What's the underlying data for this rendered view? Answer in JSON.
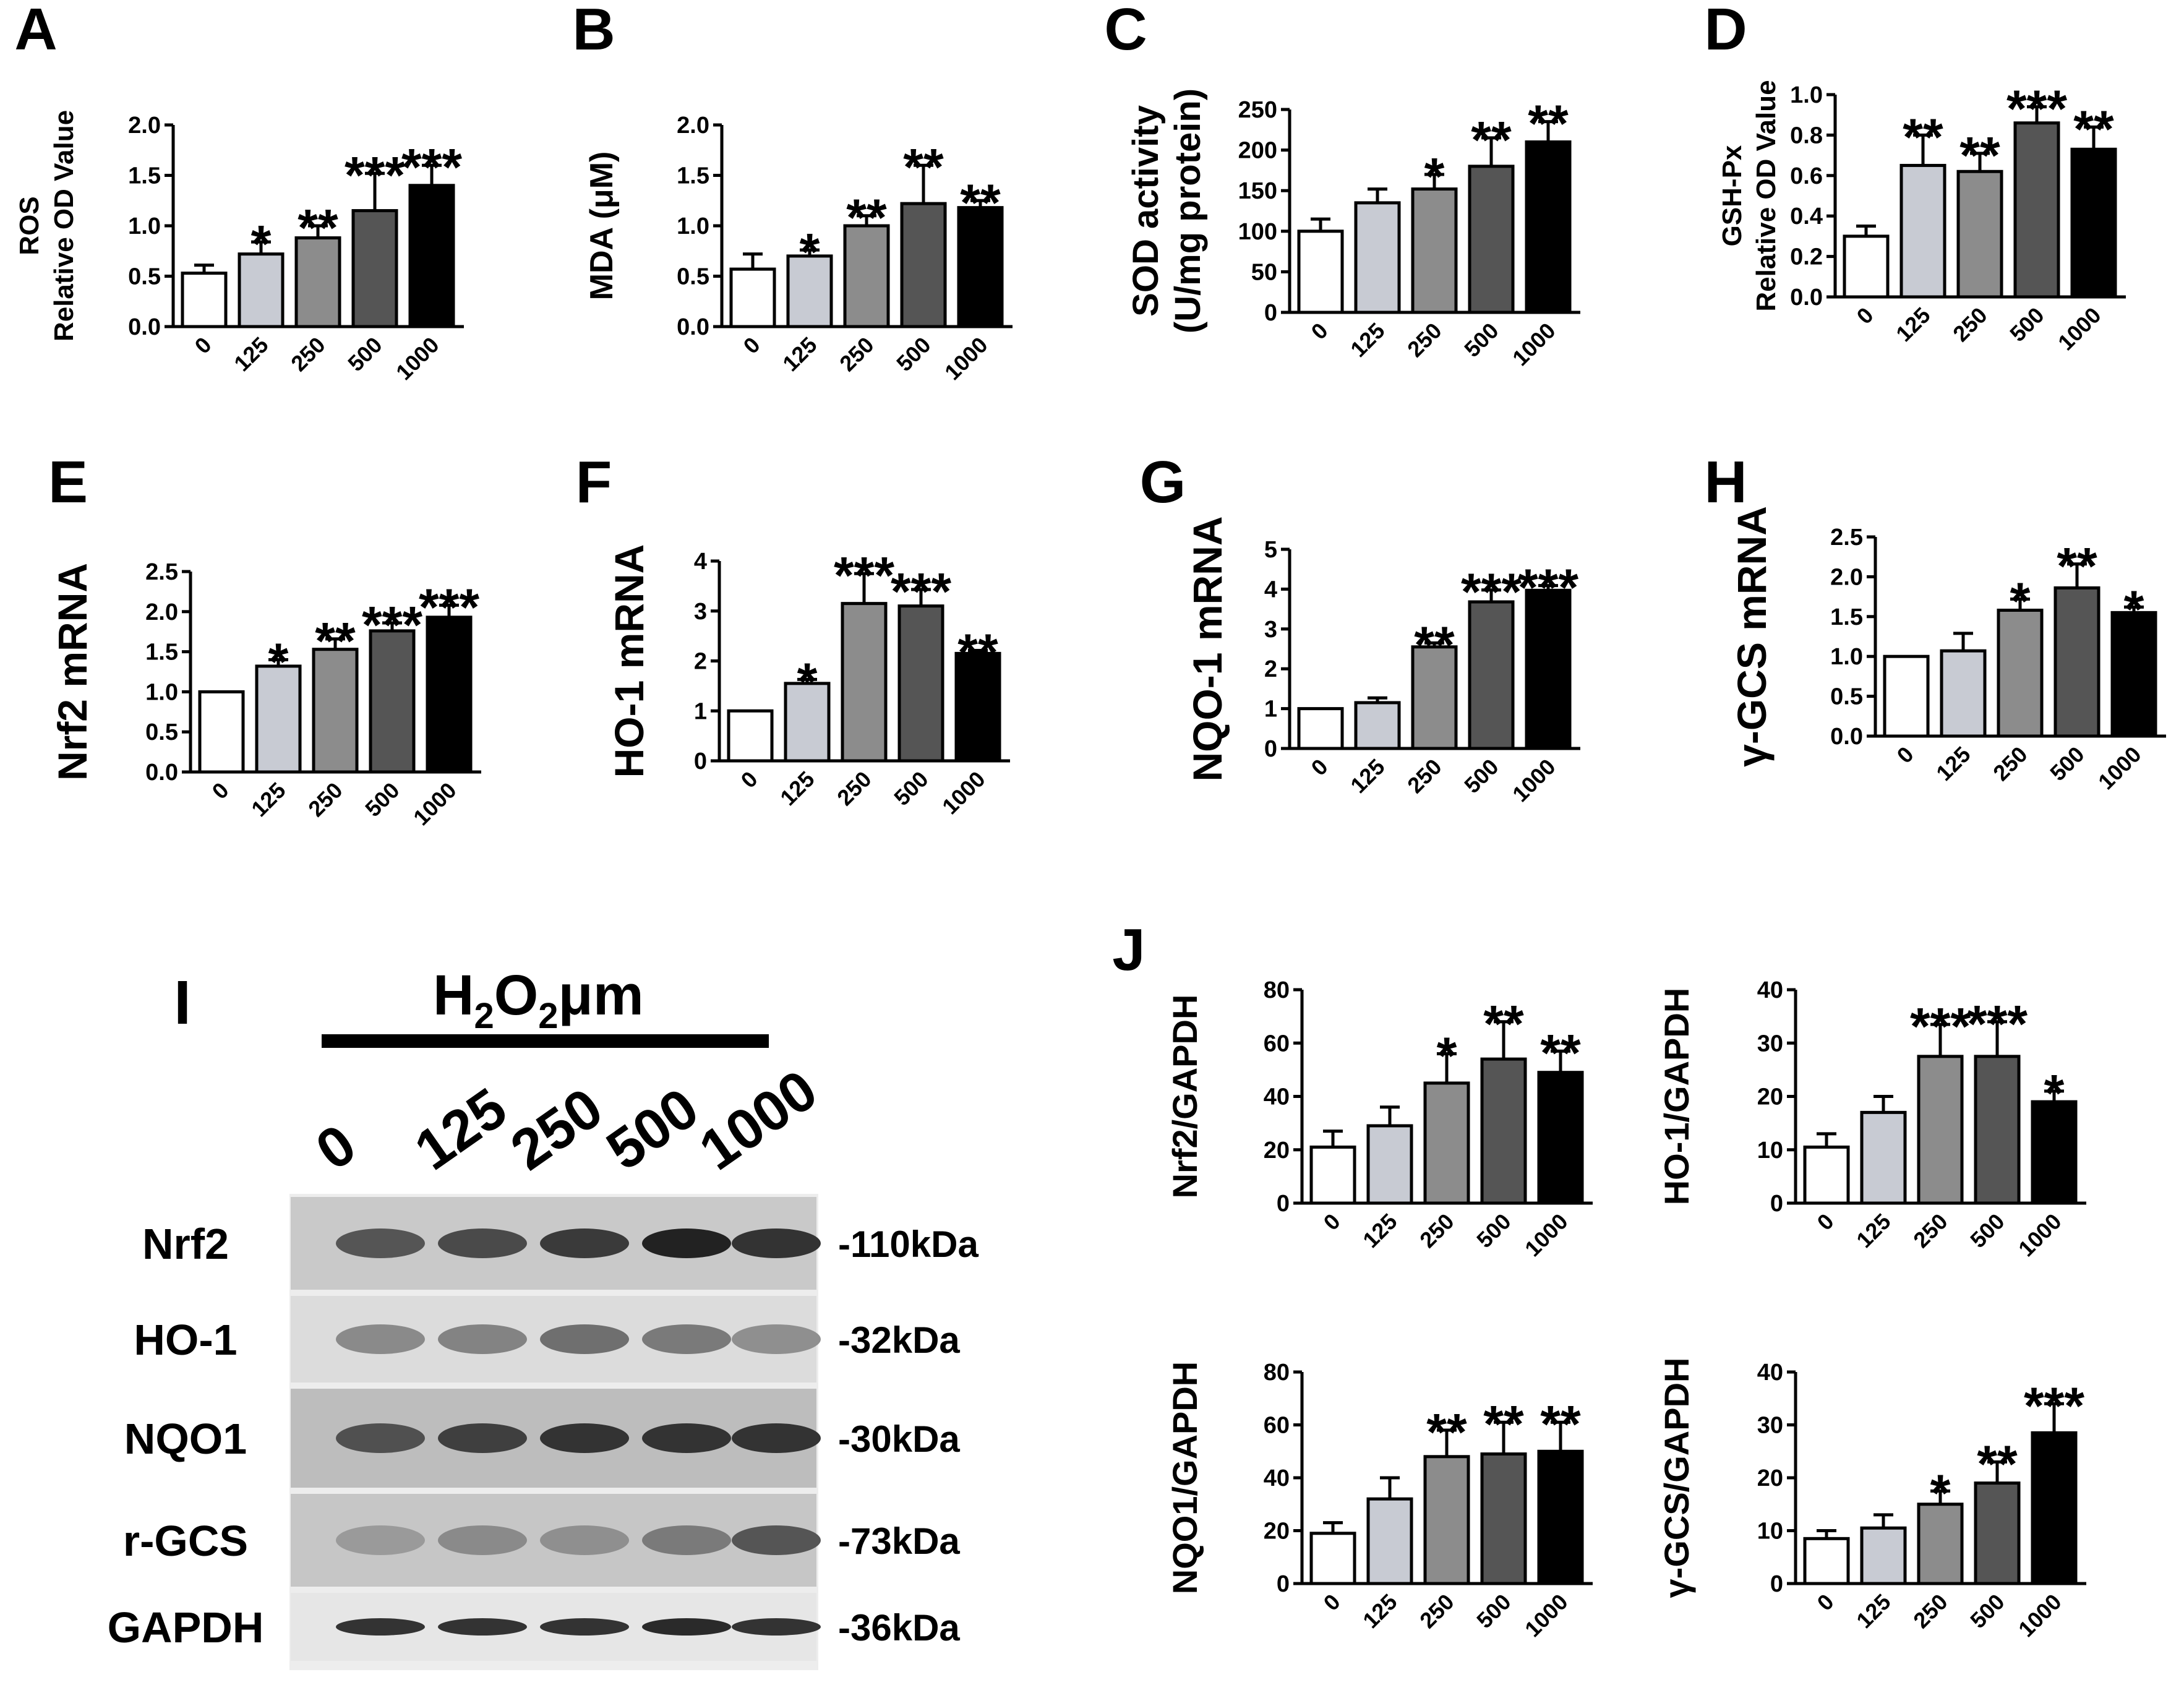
{
  "figure": {
    "western_blot": {
      "panel_letter": "I",
      "treatment_label_main": "H",
      "treatment_sub_1": "2",
      "treatment_mid": "O",
      "treatment_sub_2": "2",
      "treatment_unit": "μm",
      "lanes": [
        "0",
        "125",
        "250",
        "500",
        "1000"
      ],
      "bands": [
        {
          "protein": "Nrf2",
          "size": "-110kDa"
        },
        {
          "protein": "HO-1",
          "size": "-32kDa"
        },
        {
          "protein": "NQO1",
          "size": "-30kDa"
        },
        {
          "protein": "r-GCS",
          "size": "-73kDa"
        },
        {
          "protein": "GAPDH",
          "size": "-36kDa"
        }
      ]
    }
  },
  "colors": {
    "bar_fills": [
      "#ffffff",
      "#c8cbd3",
      "#8c8c8c",
      "#555555",
      "#000000"
    ],
    "stroke": "#000000"
  },
  "chart_data": [
    {
      "id": "A",
      "type": "bar",
      "panel_letter": "A",
      "ylabel": "ROS",
      "ylabel2": "Relative OD Value",
      "categories": [
        "0",
        "125",
        "250",
        "500",
        "1000"
      ],
      "values": [
        0.53,
        0.72,
        0.88,
        1.15,
        1.4
      ],
      "errors": [
        0.08,
        0.12,
        0.12,
        0.37,
        0.2
      ],
      "significance": [
        "",
        "*",
        "**",
        "***",
        "***"
      ],
      "ylim": [
        0,
        2.0
      ],
      "yticks": [
        "0.0",
        "0.5",
        "1.0",
        "1.5",
        "2.0"
      ]
    },
    {
      "id": "B",
      "type": "bar",
      "panel_letter": "B",
      "ylabel": "MDA (μM)",
      "ylabel2": "",
      "categories": [
        "0",
        "125",
        "250",
        "500",
        "1000"
      ],
      "values": [
        0.57,
        0.7,
        1.0,
        1.22,
        1.18
      ],
      "errors": [
        0.15,
        0.06,
        0.1,
        0.38,
        0.07
      ],
      "significance": [
        "",
        "*",
        "**",
        "**",
        "**"
      ],
      "ylim": [
        0,
        2.0
      ],
      "yticks": [
        "0.0",
        "0.5",
        "1.0",
        "1.5",
        "2.0"
      ]
    },
    {
      "id": "C",
      "type": "bar",
      "panel_letter": "C",
      "ylabel": "SOD activity",
      "ylabel2": "(U/mg protein)",
      "categories": [
        "0",
        "125",
        "250",
        "500",
        "1000"
      ],
      "values": [
        100,
        135,
        152,
        180,
        210
      ],
      "errors": [
        15,
        17,
        18,
        35,
        25
      ],
      "significance": [
        "",
        "",
        "*",
        "**",
        "**"
      ],
      "ylim": [
        0,
        250
      ],
      "yticks": [
        "0",
        "50",
        "100",
        "150",
        "200",
        "250"
      ]
    },
    {
      "id": "D",
      "type": "bar",
      "panel_letter": "D",
      "ylabel": "GSH-Px",
      "ylabel2": "Relative OD Value",
      "categories": [
        "0",
        "125",
        "250",
        "500",
        "1000"
      ],
      "values": [
        0.3,
        0.65,
        0.62,
        0.86,
        0.73
      ],
      "errors": [
        0.05,
        0.15,
        0.09,
        0.08,
        0.11
      ],
      "significance": [
        "",
        "**",
        "**",
        "***",
        "**"
      ],
      "ylim": [
        0,
        1.0
      ],
      "yticks": [
        "0.0",
        "0.2",
        "0.4",
        "0.6",
        "0.8",
        "1.0"
      ]
    },
    {
      "id": "E",
      "type": "bar",
      "panel_letter": "E",
      "ylabel": "Nrf2 mRNA",
      "ylabel2": "",
      "categories": [
        "0",
        "125",
        "250",
        "500",
        "1000"
      ],
      "values": [
        1.0,
        1.32,
        1.53,
        1.76,
        1.93
      ],
      "errors": [
        0,
        0.08,
        0.13,
        0.1,
        0.15
      ],
      "significance": [
        "",
        "*",
        "**",
        "***",
        "***"
      ],
      "ylim": [
        0,
        2.5
      ],
      "yticks": [
        "0.0",
        "0.5",
        "1.0",
        "1.5",
        "2.0",
        "2.5"
      ]
    },
    {
      "id": "F",
      "type": "bar",
      "panel_letter": "F",
      "ylabel": "HO-1 mRNA",
      "ylabel2": "",
      "categories": [
        "0",
        "125",
        "250",
        "500",
        "1000"
      ],
      "values": [
        1.0,
        1.55,
        3.15,
        3.1,
        2.15
      ],
      "errors": [
        0,
        0.08,
        0.6,
        0.33,
        0.06
      ],
      "significance": [
        "",
        "*",
        "***",
        "***",
        "**"
      ],
      "ylim": [
        0,
        4
      ],
      "yticks": [
        "0",
        "1",
        "2",
        "3",
        "4"
      ]
    },
    {
      "id": "G",
      "type": "bar",
      "panel_letter": "G",
      "ylabel": "NQO-1 mRNA",
      "ylabel2": "",
      "categories": [
        "0",
        "125",
        "250",
        "500",
        "1000"
      ],
      "values": [
        1.0,
        1.15,
        2.55,
        3.68,
        3.97
      ],
      "errors": [
        0,
        0.12,
        0.1,
        0.3,
        0.12
      ],
      "significance": [
        "",
        "",
        "**",
        "***",
        "***"
      ],
      "ylim": [
        0,
        5
      ],
      "yticks": [
        "0",
        "1",
        "2",
        "3",
        "4",
        "5"
      ]
    },
    {
      "id": "H",
      "type": "bar",
      "panel_letter": "H",
      "ylabel": "γ-GCS mRNA",
      "ylabel2": "",
      "categories": [
        "0",
        "125",
        "250",
        "500",
        "1000"
      ],
      "values": [
        1.0,
        1.07,
        1.58,
        1.86,
        1.55
      ],
      "errors": [
        0,
        0.22,
        0.14,
        0.3,
        0.07
      ],
      "significance": [
        "",
        "",
        "*",
        "**",
        "*"
      ],
      "ylim": [
        0,
        2.5
      ],
      "yticks": [
        "0.0",
        "0.5",
        "1.0",
        "1.5",
        "2.0",
        "2.5"
      ]
    },
    {
      "id": "J1",
      "type": "bar",
      "panel_letter": "J",
      "ylabel": "Nrf2/GAPDH",
      "ylabel2": "",
      "categories": [
        "0",
        "125",
        "250",
        "500",
        "1000"
      ],
      "values": [
        21,
        29,
        45,
        54,
        49
      ],
      "errors": [
        6,
        7,
        11,
        14,
        8
      ],
      "significance": [
        "",
        "",
        "*",
        "**",
        "**"
      ],
      "ylim": [
        0,
        80
      ],
      "yticks": [
        "0",
        "20",
        "40",
        "60",
        "80"
      ]
    },
    {
      "id": "J2",
      "type": "bar",
      "panel_letter": "",
      "ylabel": "HO-1/GAPDH",
      "ylabel2": "",
      "categories": [
        "0",
        "125",
        "250",
        "500",
        "1000"
      ],
      "values": [
        10.5,
        17,
        27.5,
        27.5,
        19
      ],
      "errors": [
        2.5,
        3,
        6,
        6.5,
        2
      ],
      "significance": [
        "",
        "",
        "***",
        "***",
        "*"
      ],
      "ylim": [
        0,
        40
      ],
      "yticks": [
        "0",
        "10",
        "20",
        "30",
        "40"
      ]
    },
    {
      "id": "J3",
      "type": "bar",
      "panel_letter": "",
      "ylabel": "NQO1/GAPDH",
      "ylabel2": "",
      "categories": [
        "0",
        "125",
        "250",
        "500",
        "1000"
      ],
      "values": [
        19,
        32,
        48,
        49,
        50
      ],
      "errors": [
        4,
        8,
        10,
        12,
        11
      ],
      "significance": [
        "",
        "",
        "**",
        "**",
        "**"
      ],
      "ylim": [
        0,
        80
      ],
      "yticks": [
        "0",
        "20",
        "40",
        "60",
        "80"
      ]
    },
    {
      "id": "J4",
      "type": "bar",
      "panel_letter": "",
      "ylabel": "γ-GCS/GAPDH",
      "ylabel2": "",
      "categories": [
        "0",
        "125",
        "250",
        "500",
        "1000"
      ],
      "values": [
        8.5,
        10.5,
        15,
        19,
        28.5
      ],
      "errors": [
        1.5,
        2.5,
        2.5,
        4,
        5.5
      ],
      "significance": [
        "",
        "",
        "*",
        "**",
        "***"
      ],
      "ylim": [
        0,
        40
      ],
      "yticks": [
        "0",
        "10",
        "20",
        "30",
        "40"
      ]
    }
  ]
}
